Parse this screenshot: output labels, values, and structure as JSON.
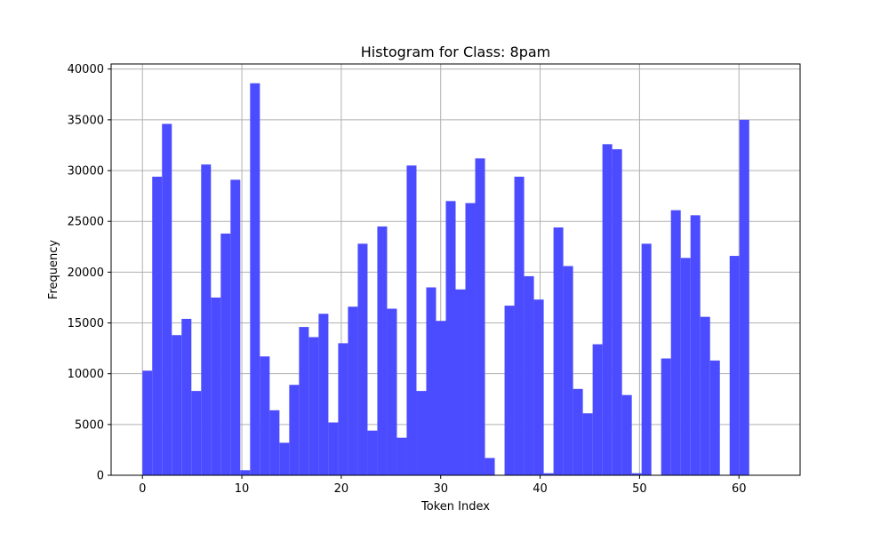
{
  "chart_data": {
    "type": "bar",
    "title": "Histogram for Class: 8pam",
    "xlabel": "Token Index",
    "ylabel": "Frequency",
    "xlim": [
      -3.15,
      66.15
    ],
    "ylim": [
      0,
      40500
    ],
    "xticks": [
      0,
      10,
      20,
      30,
      40,
      50,
      60
    ],
    "yticks": [
      0,
      5000,
      10000,
      15000,
      20000,
      25000,
      30000,
      35000,
      40000
    ],
    "grid": true,
    "bar_color": "#4b4bff",
    "bin_start": 0,
    "bin_width": 0.9844,
    "values": [
      10300,
      29400,
      34600,
      13800,
      15400,
      8300,
      30600,
      17500,
      23800,
      29100,
      500,
      38600,
      11700,
      6400,
      3200,
      8900,
      14600,
      13600,
      15900,
      5200,
      13000,
      16600,
      22800,
      4400,
      24500,
      16400,
      3700,
      30500,
      8300,
      18500,
      15200,
      27000,
      18300,
      26800,
      31200,
      1700,
      0,
      16700,
      29400,
      19600,
      17300,
      200,
      24400,
      20600,
      8500,
      6100,
      12900,
      32600,
      32100,
      7900,
      200,
      22800,
      0,
      11500,
      26100,
      21400,
      25600,
      15600,
      11300,
      0,
      21600,
      35000,
      0,
      0
    ]
  }
}
